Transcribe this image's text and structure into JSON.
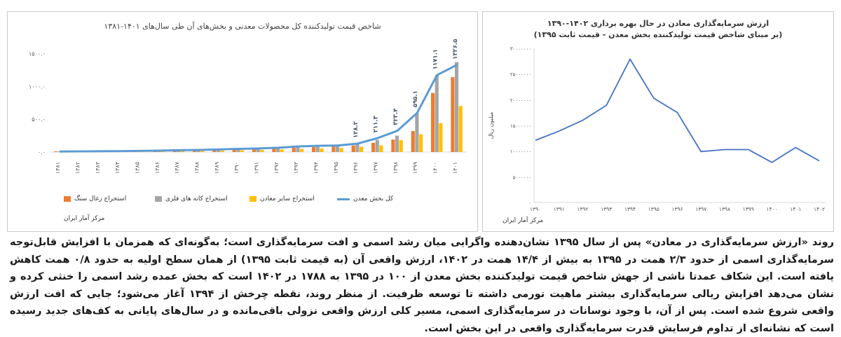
{
  "chart_data": [
    {
      "type": "bar",
      "title": "شاخص قیمت تولیدکننده کل محصولات معدنی و بخش‌های آن طی سال‌های ۱۴۰۱-۱۳۸۱",
      "categories": [
        "۱۳۸۱",
        "۱۳۸۲",
        "۱۳۸۳",
        "۱۳۸۴",
        "۱۳۸۵",
        "۱۳۸۶",
        "۱۳۸۷",
        "۱۳۸۸",
        "۱۳۸۹",
        "۱۳۹۰",
        "۱۳۹۱",
        "۱۳۹۲",
        "۱۳۹۳",
        "۱۳۹۴",
        "۱۳۹۵",
        "۱۳۹۶",
        "۱۳۹۷",
        "۱۳۹۸",
        "۱۳۹۹",
        "۱۴۰۰",
        "۱۴۰۱"
      ],
      "y_ticks": [
        "۰.۰",
        "۵۰۰.۰",
        "۱۰۰۰.۰",
        "۱۵۰۰.۰"
      ],
      "ylim": [
        0,
        1600
      ],
      "series": [
        {
          "name": "استخراج زغال سنگ",
          "color": "#ed7d31",
          "values": [
            10,
            12,
            14,
            16,
            18,
            20,
            24,
            28,
            32,
            38,
            45,
            55,
            65,
            75,
            85,
            100,
            140,
            190,
            320,
            900,
            1140
          ]
        },
        {
          "name": "استخراج کانه های فلزی",
          "color": "#a5a5a5",
          "values": [
            12,
            14,
            16,
            18,
            22,
            26,
            30,
            35,
            42,
            52,
            62,
            72,
            88,
            95,
            100,
            120,
            185,
            250,
            590,
            1170,
            1370
          ]
        },
        {
          "name": "استخراج سایر معادن",
          "color": "#ffc000",
          "values": [
            8,
            9,
            10,
            11,
            12,
            14,
            16,
            18,
            22,
            28,
            32,
            40,
            48,
            56,
            60,
            80,
            100,
            180,
            270,
            440,
            700
          ]
        },
        {
          "name": "کل بخش معدن",
          "color": "#5b9bd5",
          "values": [
            8,
            10,
            12,
            14,
            18,
            22,
            28,
            32,
            40,
            48,
            55,
            65,
            85,
            95,
            100,
            128,
            211,
            323,
            595,
            1171,
            1326
          ]
        }
      ],
      "data_labels": [
        "۱۲۸.۲",
        "۲۱۱.۳",
        "۳۲۳.۴",
        "۵۹۵.۱",
        "۱۱۷۱.۱",
        "۱۳۲۶.۵"
      ],
      "data_label_series": "کل بخش معدن",
      "data_label_categories": [
        "۱۳۹۶",
        "۱۳۹۷",
        "۱۳۹۸",
        "۱۳۹۹",
        "۱۴۰۰",
        "۱۴۰۱"
      ],
      "legend_position": "bottom",
      "source": "مرکز آمار ایران"
    },
    {
      "type": "line",
      "title": "ارزش سرمایه‌گذاری معادن در حال بهره برداری ۱۴۰۲-۱۳۹۰",
      "subtitle": "(بر مبنای شاخص قیمت تولیدکننده بخش معدن - قیمت ثابت ۱۳۹۵)",
      "ylabel": "میلیون ریال",
      "categories": [
        "۱۳۹۰",
        "۱۳۹۱",
        "۱۳۹۲",
        "۱۳۹۳",
        "۱۳۹۴",
        "۱۳۹۵",
        "۱۳۹۶",
        "۱۳۹۷",
        "۱۳۹۸",
        "۱۳۹۹",
        "۱۴۰۰",
        "۱۴۰۱",
        "۱۴۰۲"
      ],
      "y_ticks": [
        "۰",
        "۵۰۰۰۰۰۰",
        "۱۰۰۰۰۰۰۰",
        "۱۵۰۰۰۰۰۰",
        "۲۰۰۰۰۰۰۰",
        "۲۵۰۰۰۰۰۰",
        "۳۰۰۰۰۰۰۰"
      ],
      "ylim": [
        0,
        30000000
      ],
      "series": [
        {
          "color": "#4472c4",
          "values": [
            12100000,
            13900000,
            16000000,
            18900000,
            27900000,
            20300000,
            17500000,
            9900000,
            10300000,
            10300000,
            7800000,
            10700000,
            8100000
          ]
        }
      ],
      "source": "مرکز آمار ایران"
    }
  ],
  "paragraph": "روند «ارزش سرمایه‌گذاری در معادن» پس از سال ۱۳۹۵ نشان‌دهنده واگرایی میان رشد اسمی و افت سرمایه‌گذاری است؛ به‌گونه‌ای که همزمان با افزایش قابل‌توجه سرمایه‌گذاری اسمی از حدود ۲/۳ همت در ۱۳۹۵ به بیش از ۱۴/۴ همت در ۱۴۰۲، ارزش واقعی آن (به قیمت ثابت ۱۳۹۵) از همان سطح اولیه به حدود ۰/۸ همت کاهش یافته است. این شکاف عمدتا ناشی از جهش شاخص قیمت تولیدکننده بخش معدن از ۱۰۰ در ۱۳۹۵ به ۱۷۸۸ در ۱۴۰۲ است که بخش عمده رشد اسمی را خنثی کرده و نشان می‌دهد افزایش ریالی سرمایه‌گذاری بیشتر ماهیت تورمی داشته تا توسعه ظرفیت. از منظر روند، نقطه چرخش از ۱۳۹۴ آغاز می‌شود؛ جایی که افت ارزش واقعی شروع شده است. پس از آن، با وجود نوسانات در سرمایه‌گذاری اسمی، مسیر کلی ارزش واقعی نزولی باقی‌مانده و در سال‌های پایانی به کف‌های جدید رسیده است که نشانه‌ای از تداوم فرسایش قدرت سرمایه‌گذاری واقعی در این بخش است."
}
